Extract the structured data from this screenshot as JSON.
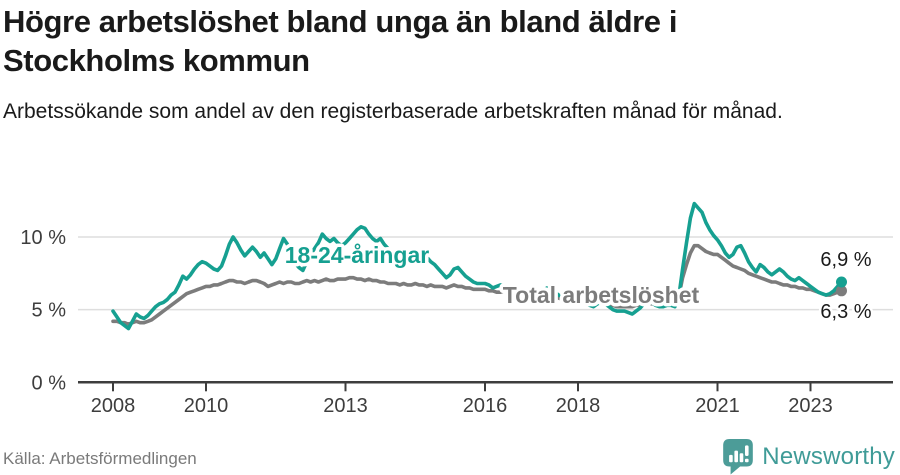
{
  "chart_data": {
    "type": "line",
    "title": "Högre arbetslöshet bland unga än bland äldre i Stockholms kommun",
    "subtitle": "Arbetssökande som andel av den registerbaserade arbetskraften månad för månad.",
    "unit": "%",
    "x_start_year": 2008,
    "x_interval": "monthly",
    "x_end_label": "2023",
    "ylim": [
      0,
      13.6
    ],
    "grid": true,
    "legend_position": "inline-labels",
    "y_ticks": [
      {
        "label": "0 %",
        "value": 0
      },
      {
        "label": "5 %",
        "value": 5
      },
      {
        "label": "10 %",
        "value": 10
      }
    ],
    "x_ticks": [
      {
        "label": "2008",
        "year": 2008
      },
      {
        "label": "2010",
        "year": 2010
      },
      {
        "label": "2013",
        "year": 2013
      },
      {
        "label": "2016",
        "year": 2016
      },
      {
        "label": "2018",
        "year": 2018
      },
      {
        "label": "2021",
        "year": 2021
      },
      {
        "label": "2023",
        "year": 2023
      }
    ],
    "series": [
      {
        "name": "Total arbetslöshet",
        "color": "#7C7C7C",
        "end_label": "6,3 %",
        "end_value": 6.3,
        "values": [
          4.2,
          4.2,
          4.1,
          4.1,
          4.0,
          4.1,
          4.2,
          4.1,
          4.1,
          4.2,
          4.3,
          4.5,
          4.7,
          4.9,
          5.1,
          5.3,
          5.5,
          5.7,
          5.9,
          6.1,
          6.2,
          6.3,
          6.4,
          6.5,
          6.6,
          6.6,
          6.7,
          6.7,
          6.8,
          6.9,
          7.0,
          7.0,
          6.9,
          6.9,
          6.8,
          6.9,
          7.0,
          7.0,
          6.9,
          6.8,
          6.6,
          6.7,
          6.8,
          6.9,
          6.8,
          6.9,
          6.9,
          6.8,
          6.8,
          6.9,
          7.0,
          6.9,
          7.0,
          6.9,
          7.0,
          7.1,
          7.0,
          7.0,
          7.1,
          7.1,
          7.1,
          7.2,
          7.2,
          7.1,
          7.1,
          7.0,
          7.1,
          7.0,
          7.0,
          6.9,
          6.9,
          6.8,
          6.8,
          6.8,
          6.7,
          6.8,
          6.7,
          6.7,
          6.8,
          6.7,
          6.7,
          6.6,
          6.7,
          6.6,
          6.6,
          6.6,
          6.5,
          6.6,
          6.7,
          6.6,
          6.6,
          6.5,
          6.5,
          6.4,
          6.4,
          6.4,
          6.4,
          6.3,
          6.3,
          6.2,
          6.2,
          6.3,
          6.3,
          6.2,
          6.1,
          6.1,
          6.0,
          6.0,
          6.0,
          5.9,
          5.9,
          5.8,
          5.8,
          5.9,
          5.9,
          5.8,
          5.7,
          5.7,
          5.6,
          5.6,
          5.6,
          5.5,
          5.5,
          5.4,
          5.4,
          5.5,
          5.5,
          5.4,
          5.3,
          5.3,
          5.2,
          5.2,
          5.2,
          5.2,
          5.2,
          5.3,
          5.3,
          5.4,
          5.5,
          5.4,
          5.4,
          5.3,
          5.3,
          5.4,
          5.4,
          5.4,
          5.9,
          7.2,
          8.1,
          8.9,
          9.4,
          9.4,
          9.2,
          9.0,
          8.9,
          8.8,
          8.8,
          8.6,
          8.4,
          8.2,
          8.0,
          7.9,
          7.8,
          7.7,
          7.5,
          7.4,
          7.3,
          7.2,
          7.1,
          7.0,
          6.9,
          6.9,
          6.8,
          6.7,
          6.7,
          6.6,
          6.6,
          6.5,
          6.5,
          6.4,
          6.4,
          6.3,
          6.2,
          6.1,
          6.0,
          6.0,
          6.1,
          6.2,
          6.3
        ]
      },
      {
        "name": "18-24-åringar",
        "color": "#16A091",
        "end_label": "6,9 %",
        "end_value": 6.9,
        "values": [
          4.9,
          4.5,
          4.1,
          3.9,
          3.7,
          4.2,
          4.7,
          4.5,
          4.4,
          4.6,
          4.9,
          5.2,
          5.4,
          5.5,
          5.7,
          6.0,
          6.2,
          6.7,
          7.3,
          7.1,
          7.4,
          7.8,
          8.1,
          8.3,
          8.2,
          8.0,
          7.8,
          7.7,
          8.0,
          8.7,
          9.5,
          10.0,
          9.6,
          9.1,
          8.7,
          9.0,
          9.3,
          9.0,
          8.6,
          8.9,
          8.5,
          8.1,
          8.5,
          9.2,
          9.9,
          9.5,
          8.8,
          8.2,
          7.9,
          7.7,
          8.3,
          8.8,
          9.2,
          9.6,
          10.2,
          9.9,
          9.7,
          9.9,
          9.6,
          9.4,
          9.6,
          9.9,
          10.2,
          10.5,
          10.7,
          10.6,
          10.2,
          9.9,
          9.7,
          9.9,
          9.5,
          9.2,
          9.0,
          8.8,
          8.7,
          8.5,
          8.4,
          8.6,
          8.8,
          8.6,
          8.4,
          8.6,
          8.3,
          8.1,
          7.8,
          7.5,
          7.2,
          7.4,
          7.8,
          7.9,
          7.6,
          7.3,
          7.1,
          6.9,
          6.8,
          6.8,
          6.8,
          6.7,
          6.5,
          6.6,
          6.7,
          6.6,
          6.5,
          6.4,
          6.5,
          6.4,
          6.3,
          6.3,
          6.4,
          6.3,
          6.2,
          6.3,
          6.5,
          6.4,
          6.2,
          6.0,
          5.9,
          5.8,
          5.7,
          5.6,
          5.6,
          5.5,
          5.4,
          5.3,
          5.2,
          5.4,
          5.5,
          5.4,
          5.2,
          5.0,
          4.9,
          4.9,
          4.9,
          4.8,
          4.7,
          4.9,
          5.1,
          5.4,
          5.6,
          5.5,
          5.3,
          5.2,
          5.2,
          5.3,
          5.3,
          5.2,
          5.9,
          7.8,
          9.6,
          11.3,
          12.3,
          12.0,
          11.7,
          11.0,
          10.5,
          10.1,
          9.8,
          9.4,
          8.9,
          8.6,
          8.8,
          9.3,
          9.4,
          8.9,
          8.3,
          7.9,
          7.6,
          8.1,
          7.9,
          7.6,
          7.4,
          7.6,
          7.8,
          7.6,
          7.3,
          7.1,
          7.0,
          7.2,
          7.0,
          6.8,
          6.6,
          6.4,
          6.2,
          6.1,
          6.0,
          6.1,
          6.3,
          6.6,
          6.9
        ]
      }
    ]
  },
  "footer": {
    "source": "Källa: Arbetsförmedlingen",
    "logo_text": "Newsworthy"
  }
}
